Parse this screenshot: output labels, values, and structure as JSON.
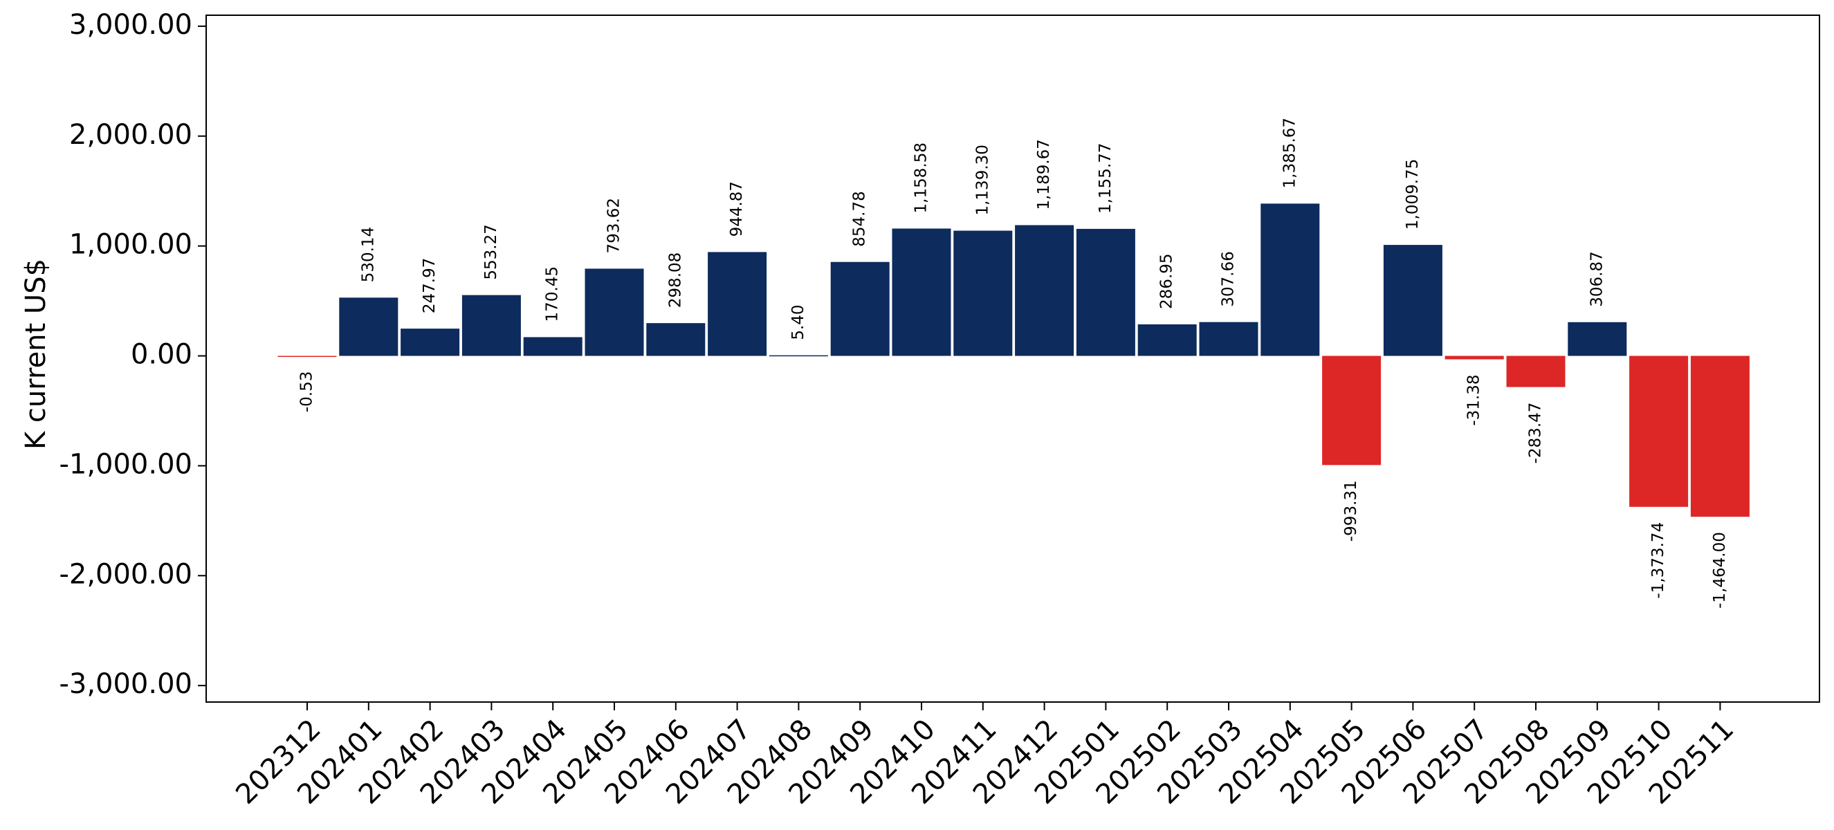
{
  "chart_data": {
    "type": "bar",
    "title": "",
    "xlabel": "",
    "ylabel": "K current US$",
    "ylim": [
      -3150,
      3100
    ],
    "yticks": [
      3000,
      2000,
      1000,
      0,
      -1000,
      -2000,
      -3000
    ],
    "ytick_labels": [
      "3,000.00",
      "2,000.00",
      "1,000.00",
      "0.00",
      "-1,000.00",
      "-2,000.00",
      "-3,000.00"
    ],
    "grid": false,
    "legend": "none",
    "colors": {
      "positive": "#0d2b5c",
      "negative": "#dd2727"
    },
    "categories": [
      "202312",
      "202401",
      "202402",
      "202403",
      "202404",
      "202405",
      "202406",
      "202407",
      "202408",
      "202409",
      "202410",
      "202411",
      "202412",
      "202501",
      "202502",
      "202503",
      "202504",
      "202505",
      "202506",
      "202507",
      "202508",
      "202509",
      "202510",
      "202511"
    ],
    "values": [
      -0.53,
      530.14,
      247.97,
      553.27,
      170.45,
      793.62,
      298.08,
      944.87,
      5.4,
      854.78,
      1158.58,
      1139.3,
      1189.67,
      1155.77,
      286.95,
      307.66,
      1385.67,
      -993.31,
      1009.75,
      -31.38,
      -283.47,
      306.87,
      -1373.74,
      -1464.0
    ],
    "data_labels": [
      "-0.53",
      "530.14",
      "247.97",
      "553.27",
      "170.45",
      "793.62",
      "298.08",
      "944.87",
      "5.40",
      "854.78",
      "1,158.58",
      "1,139.30",
      "1,189.67",
      "1,155.77",
      "286.95",
      "307.66",
      "1,385.67",
      "-993.31",
      "1,009.75",
      "-31.38",
      "-283.47",
      "306.87",
      "-1,373.74",
      "-1,464.00"
    ]
  }
}
